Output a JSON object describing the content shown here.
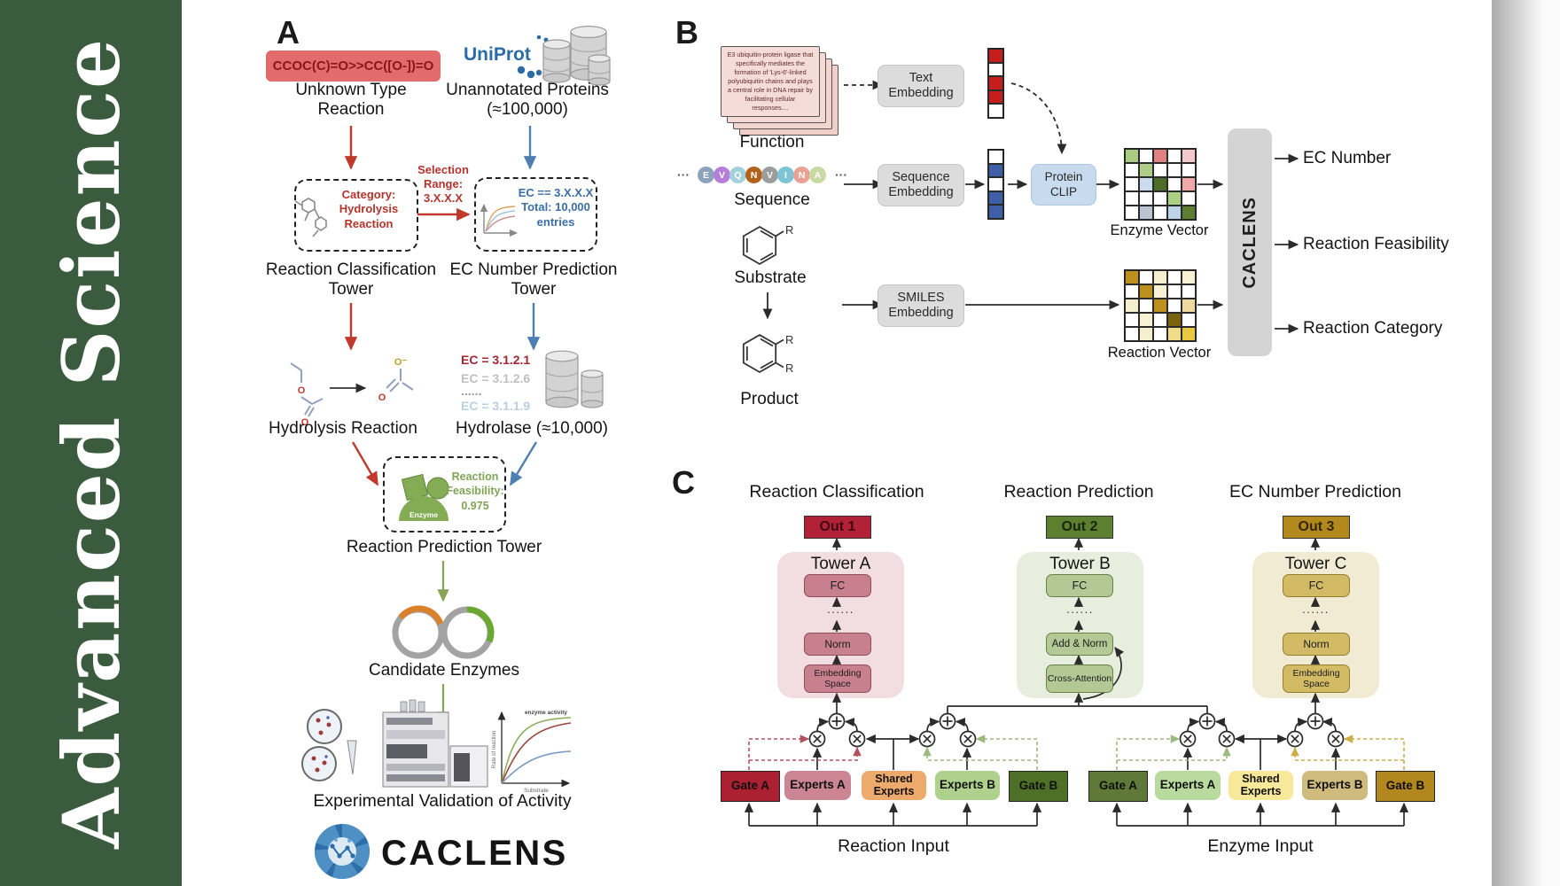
{
  "sidebar": {
    "journal": "Advanced Science"
  },
  "panel_a": {
    "label": "A",
    "smiles_reaction": "CCOC(C)=O>>CC([O-])=O",
    "uniprot": "UniProt",
    "unknown_type": "Unknown Type Reaction",
    "unannotated": "Unannotated Proteins (≈100,000)",
    "selection_range": "Selection Range: 3.X.X.X",
    "category": "Category: Hydrolysis Reaction",
    "ec_filter": "EC == 3.X.X.X Total: 10,000 entries",
    "classification_tower": "Reaction Classification Tower",
    "ec_tower": "EC Number Prediction Tower",
    "hydrolysis": "Hydrolysis Reaction",
    "hydrolase": "Hydrolase (≈10,000)",
    "ec_list": [
      {
        "text": "EC = 3.1.2.1",
        "color": "#a32733"
      },
      {
        "text": "EC = 3.1.2.6",
        "color": "#c0c0c0"
      },
      {
        "text": "......",
        "color": "#9a9a9a"
      },
      {
        "text": "EC = 3.1.1.9",
        "color": "#b9cfe4"
      }
    ],
    "enzyme_label": "Enzyme",
    "feasibility": "Reaction Feasibility: 0.975",
    "prediction_tower": "Reaction Prediction Tower",
    "candidate_enzymes": "Candidate Enzymes",
    "validation": "Experimental Validation of Activity",
    "brand": "CACLENS",
    "graph": {
      "title": "enzyme activity",
      "ylabel": "Rate of reaction",
      "xlabel": "Substrate"
    }
  },
  "panel_b": {
    "label": "B",
    "function_text": "E3 ubiquitin-protein ligase that specifically mediates the formation of 'Lys-6'-linked polyubiquitin chains and plays a central role in DNA repair by facilitating cellular responses....",
    "function_label": "Function",
    "sequence_label": "Sequence",
    "substrate_label": "Substrate",
    "product_label": "Product",
    "r_label": "R",
    "ellipsis": "···",
    "residues": [
      {
        "letter": "E",
        "color": "#8ba3bd"
      },
      {
        "letter": "V",
        "color": "#b57fd9"
      },
      {
        "letter": "Q",
        "color": "#a4d0dc"
      },
      {
        "letter": "N",
        "color": "#b4611b"
      },
      {
        "letter": "V",
        "color": "#9c9c9c"
      },
      {
        "letter": "I",
        "color": "#7cc4d6"
      },
      {
        "letter": "N",
        "color": "#e8a193"
      },
      {
        "letter": "A",
        "color": "#c8daa2"
      }
    ],
    "text_embedding": "Text Embedding",
    "sequence_embedding": "Sequence Embedding",
    "smiles_embedding": "SMILES Embedding",
    "protein_clip": "Protein CLIP",
    "text_vector": [
      "#c41e1e",
      "#ffffff",
      "#c41e1e",
      "#c41e1e",
      "#ffffff"
    ],
    "seq_vector": [
      "#ffffff",
      "#3e5fa5",
      "#ffffff",
      "#3e5fa5",
      "#3e5fa5"
    ],
    "enzyme_vector_label": "Enzyme Vector",
    "reaction_vector_label": "Reaction Vector",
    "enzyme_vector": [
      "#a9cb82",
      "#ffffff",
      "#e28181",
      "#ffffff",
      "#f3c9c9",
      "#ffffff",
      "#aecd87",
      "#ffffff",
      "#ffffff",
      "#ffffff",
      "#ffffff",
      "#cbdcee",
      "#4c6d29",
      "#ffffff",
      "#efa9a9",
      "#ffffff",
      "#ffffff",
      "#ffffff",
      "#abd083",
      "#ffffff",
      "#ffffff",
      "#b9c6d1",
      "#ffffff",
      "#bed3ea",
      "#5d7d33"
    ],
    "reaction_vector": [
      "#bd8f1c",
      "#ffffff",
      "#f6efcd",
      "#ffffff",
      "#f8f1d4",
      "#ffffff",
      "#bd8f1c",
      "#f8f1d4",
      "#ffffff",
      "#ffffff",
      "#f6efcd",
      "#ffffff",
      "#bd8f1c",
      "#ffffff",
      "#eeda9e",
      "#ffffff",
      "#f8f1d4",
      "#ffffff",
      "#7a630e",
      "#ffffff",
      "#ffffff",
      "#f6efcd",
      "#ffffff",
      "#f0dc88",
      "#e9c93f"
    ],
    "caclens": "CACLENS",
    "outputs": [
      "EC Number",
      "Reaction Feasibility",
      "Reaction Category"
    ]
  },
  "panel_c": {
    "label": "C",
    "dots": "......",
    "columns": [
      {
        "title": "Reaction Classification",
        "out": "Out 1",
        "tower": "Tower A",
        "fc": "FC",
        "mid": "Norm",
        "bottom": "Embedding Space"
      },
      {
        "title": "Reaction Prediction",
        "out": "Out 2",
        "tower": "Tower B",
        "fc": "FC",
        "mid": "Add & Norm",
        "bottom": "Cross-Attention"
      },
      {
        "title": "EC Number Prediction",
        "out": "Out 3",
        "tower": "Tower C",
        "fc": "FC",
        "mid": "Norm",
        "bottom": "Embedding Space"
      }
    ],
    "groups": [
      {
        "gate_a": "Gate A",
        "experts_a": "Experts A",
        "shared": "Shared Experts",
        "experts_b": "Experts B",
        "gate_b": "Gate B",
        "input": "Reaction Input"
      },
      {
        "gate_a": "Gate A",
        "experts_a": "Experts A",
        "shared": "Shared Experts",
        "experts_b": "Experts B",
        "gate_b": "Gate B",
        "input": "Enzyme Input"
      }
    ]
  },
  "colors": {
    "sidebar_green": "#3b5b3e",
    "arrow_red": "#c0392b",
    "arrow_blue": "#4d7fb0",
    "arrow_green": "#87a456",
    "uniprot_blue": "#2b6ba6",
    "smiles_box_bg": "#e26b6b",
    "smiles_box_text": "#8c1616"
  }
}
